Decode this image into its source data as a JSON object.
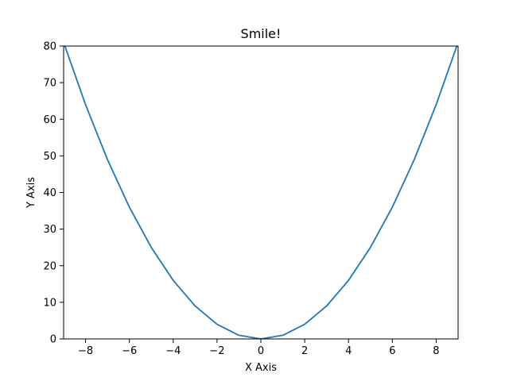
{
  "chart_data": {
    "type": "line",
    "title": "Smile!",
    "xlabel": "X Axis",
    "ylabel": "Y Axis",
    "xlim": [
      -9,
      9
    ],
    "ylim": [
      0,
      80
    ],
    "xticks": [
      -8,
      -6,
      -4,
      -2,
      0,
      2,
      4,
      6,
      8
    ],
    "yticks": [
      0,
      10,
      20,
      30,
      40,
      50,
      60,
      70,
      80
    ],
    "grid": false,
    "series": [
      {
        "color": "#1f77b4",
        "x": [
          -9,
          -8,
          -7,
          -6,
          -5,
          -4,
          -3,
          -2,
          -1,
          0,
          1,
          2,
          3,
          4,
          5,
          6,
          7,
          8,
          9
        ],
        "y": [
          81,
          64,
          49,
          36,
          25,
          16,
          9,
          4,
          1,
          0,
          1,
          4,
          9,
          16,
          25,
          36,
          49,
          64,
          81
        ]
      }
    ]
  }
}
